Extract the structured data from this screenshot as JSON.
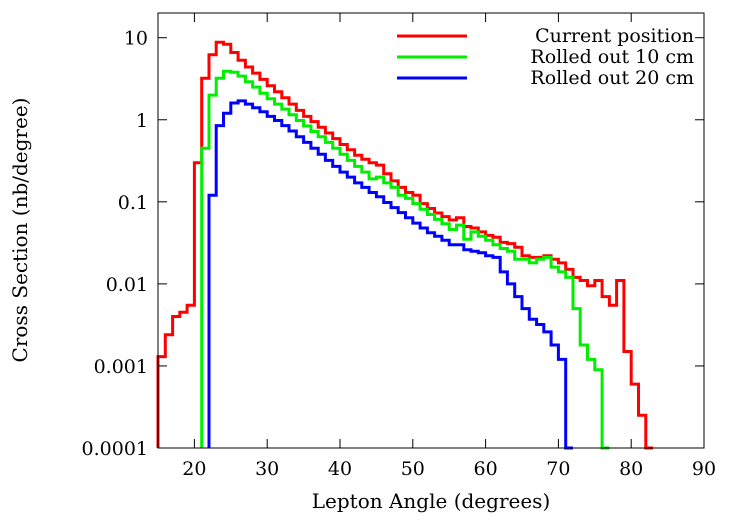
{
  "chart_data": {
    "type": "line",
    "title": "",
    "xlabel": "Lepton Angle (degrees)",
    "ylabel": "Cross Section (nb/degree)",
    "xlim": [
      15,
      90
    ],
    "ylim": [
      0.0001,
      20
    ],
    "yscale": "log",
    "grid": false,
    "legend_position": "top-right",
    "x_ticks": [
      {
        "value": 20,
        "label": "20"
      },
      {
        "value": 30,
        "label": "30"
      },
      {
        "value": 40,
        "label": "40"
      },
      {
        "value": 50,
        "label": "50"
      },
      {
        "value": 60,
        "label": "60"
      },
      {
        "value": 70,
        "label": "70"
      },
      {
        "value": 80,
        "label": "80"
      },
      {
        "value": 90,
        "label": "90"
      }
    ],
    "y_ticks": [
      {
        "value": 0.0001,
        "label": "0.0001"
      },
      {
        "value": 0.001,
        "label": "0.001"
      },
      {
        "value": 0.01,
        "label": "0.01"
      },
      {
        "value": 0.1,
        "label": "0.1"
      },
      {
        "value": 1,
        "label": "1"
      },
      {
        "value": 10,
        "label": "10"
      }
    ],
    "bin_start": 15,
    "bin_width": 1,
    "series": [
      {
        "name": "Current position",
        "color": "#ff0000",
        "values": [
          0.0013,
          0.0024,
          0.004,
          0.0045,
          0.0055,
          0.3,
          3.2,
          6.2,
          8.8,
          8.3,
          6.6,
          5.3,
          4.4,
          3.7,
          3.1,
          2.6,
          2.2,
          1.85,
          1.55,
          1.3,
          1.1,
          0.95,
          0.81,
          0.69,
          0.59,
          0.5,
          0.43,
          0.37,
          0.33,
          0.3,
          0.28,
          0.22,
          0.18,
          0.15,
          0.13,
          0.12,
          0.095,
          0.083,
          0.073,
          0.066,
          0.06,
          0.064,
          0.05,
          0.048,
          0.043,
          0.039,
          0.037,
          0.032,
          0.031,
          0.028,
          0.022,
          0.021,
          0.021,
          0.022,
          0.02,
          0.018,
          0.015,
          0.012,
          0.011,
          0.0095,
          0.011,
          0.007,
          0.0055,
          0.011,
          0.0015,
          0.0006,
          0.00025,
          0.0001
        ]
      },
      {
        "name": "Rolled out 10 cm",
        "color": "#00ee00",
        "values": [
          null,
          null,
          null,
          null,
          null,
          null,
          0.45,
          2.0,
          3.2,
          3.9,
          3.8,
          3.4,
          2.9,
          2.5,
          2.1,
          1.8,
          1.55,
          1.35,
          1.15,
          0.98,
          0.84,
          0.72,
          0.62,
          0.53,
          0.45,
          0.38,
          0.32,
          0.27,
          0.23,
          0.19,
          0.2,
          0.17,
          0.15,
          0.12,
          0.11,
          0.095,
          0.081,
          0.07,
          0.061,
          0.054,
          0.046,
          0.052,
          0.035,
          0.043,
          0.038,
          0.034,
          0.03,
          0.027,
          0.025,
          0.02,
          0.02,
          0.018,
          0.02,
          0.021,
          0.016,
          0.014,
          0.012,
          0.005,
          0.0018,
          0.0012,
          0.0009,
          0.0001
        ]
      },
      {
        "name": "Rolled out 20 cm",
        "color": "#0000ff",
        "values": [
          null,
          null,
          null,
          null,
          null,
          null,
          null,
          0.12,
          0.85,
          1.2,
          1.6,
          1.7,
          1.55,
          1.4,
          1.25,
          1.1,
          0.98,
          0.85,
          0.73,
          0.62,
          0.53,
          0.45,
          0.38,
          0.32,
          0.27,
          0.23,
          0.2,
          0.17,
          0.15,
          0.13,
          0.115,
          0.098,
          0.085,
          0.074,
          0.064,
          0.055,
          0.048,
          0.042,
          0.038,
          0.034,
          0.03,
          0.03,
          0.026,
          0.025,
          0.024,
          0.022,
          0.021,
          0.014,
          0.01,
          0.007,
          0.005,
          0.0037,
          0.0032,
          0.0026,
          0.0018,
          0.0012,
          0.0001
        ]
      }
    ]
  }
}
